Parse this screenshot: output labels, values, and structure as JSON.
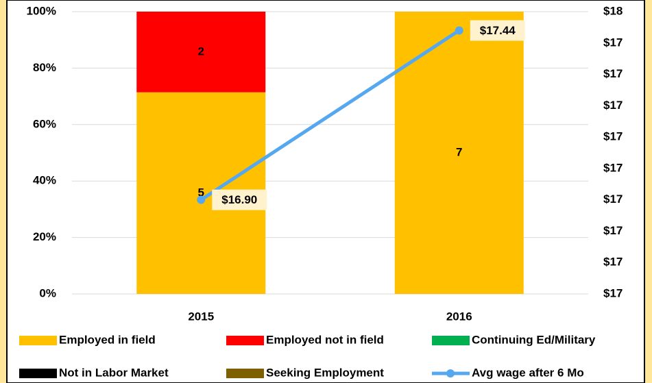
{
  "chart_data": {
    "type": "bar",
    "stack": "percent",
    "categories": [
      "2015",
      "2016"
    ],
    "series": [
      {
        "name": "Employed in field",
        "color": "#ffc000",
        "values": [
          5,
          7
        ]
      },
      {
        "name": "Employed not in field",
        "color": "#ff0000",
        "values": [
          2,
          0
        ]
      },
      {
        "name": "Continuing Ed/Military",
        "color": "#00b050",
        "values": [
          0,
          0
        ]
      },
      {
        "name": "Not in Labor Market",
        "color": "#000000",
        "values": [
          0,
          0
        ]
      },
      {
        "name": "Seeking Employment",
        "color": "#7f6000",
        "values": [
          0,
          0
        ]
      },
      {
        "name": "Avg wage after 6 Mo",
        "color": "#55a8f0",
        "type": "line",
        "axis": "y2",
        "values": [
          16.9,
          17.44
        ],
        "value_labels": [
          "$16.90",
          "$17.44"
        ]
      }
    ],
    "ylim": [
      0,
      100
    ],
    "yticks": [
      {
        "value": 0,
        "label": "0%"
      },
      {
        "value": 20,
        "label": "20%"
      },
      {
        "value": 40,
        "label": "40%"
      },
      {
        "value": 60,
        "label": "60%"
      },
      {
        "value": 80,
        "label": "80%"
      },
      {
        "value": 100,
        "label": "100%"
      }
    ],
    "y2lim": [
      16.6,
      17.5
    ],
    "y2ticks": [
      {
        "value": 16.6,
        "label": "$17"
      },
      {
        "value": 16.7,
        "label": "$17"
      },
      {
        "value": 16.8,
        "label": "$17"
      },
      {
        "value": 16.9,
        "label": "$17"
      },
      {
        "value": 17.0,
        "label": "$17"
      },
      {
        "value": 17.1,
        "label": "$17"
      },
      {
        "value": 17.2,
        "label": "$17"
      },
      {
        "value": 17.3,
        "label": "$17"
      },
      {
        "value": 17.4,
        "label": "$17"
      },
      {
        "value": 17.5,
        "label": "$18"
      }
    ],
    "grid": true,
    "legend": "bottom"
  }
}
